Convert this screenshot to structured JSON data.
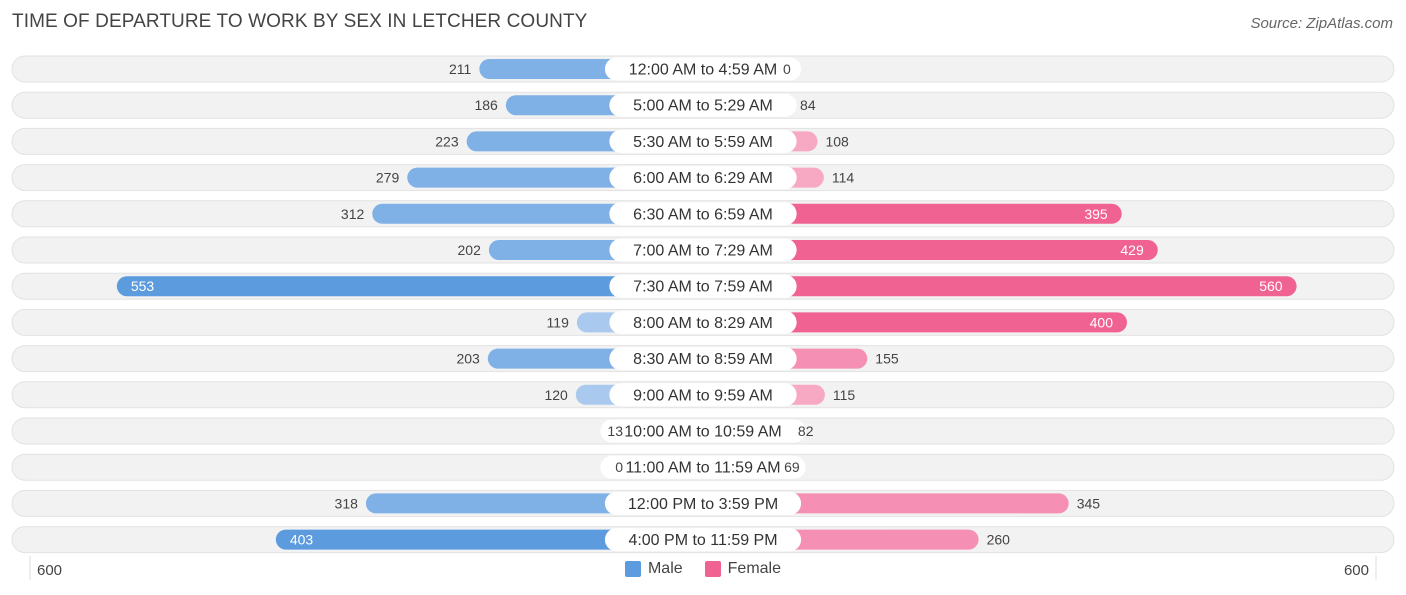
{
  "header": {
    "title": "TIME OF DEPARTURE TO WORK BY SEX IN LETCHER COUNTY",
    "source": "Source: ZipAtlas.com"
  },
  "colors": {
    "male": "#5b9bde",
    "male_light": "#a9c9ef",
    "female": "#f06292",
    "female_light": "#f7a8c3",
    "row_bg": "#f2f2f2",
    "row_border": "#e2e2e2"
  },
  "legend": {
    "male_label": "Male",
    "female_label": "Female"
  },
  "axis": {
    "left_label": "600",
    "right_label": "600"
  },
  "chart_data": {
    "type": "bar",
    "orientation": "horizontal-diverging",
    "title": "TIME OF DEPARTURE TO WORK BY SEX IN LETCHER COUNTY",
    "xlim": [
      -600,
      600
    ],
    "categories": [
      "12:00 AM to 4:59 AM",
      "5:00 AM to 5:29 AM",
      "5:30 AM to 5:59 AM",
      "6:00 AM to 6:29 AM",
      "6:30 AM to 6:59 AM",
      "7:00 AM to 7:29 AM",
      "7:30 AM to 7:59 AM",
      "8:00 AM to 8:29 AM",
      "8:30 AM to 8:59 AM",
      "9:00 AM to 9:59 AM",
      "10:00 AM to 10:59 AM",
      "11:00 AM to 11:59 AM",
      "12:00 PM to 3:59 PM",
      "4:00 PM to 11:59 PM"
    ],
    "series": [
      {
        "name": "Male",
        "values": [
          211,
          186,
          223,
          279,
          312,
          202,
          553,
          119,
          203,
          120,
          13,
          0,
          318,
          403
        ]
      },
      {
        "name": "Female",
        "values": [
          0,
          84,
          108,
          114,
          395,
          429,
          560,
          400,
          155,
          115,
          82,
          69,
          345,
          260
        ]
      }
    ],
    "legend_position": "bottom-center"
  }
}
